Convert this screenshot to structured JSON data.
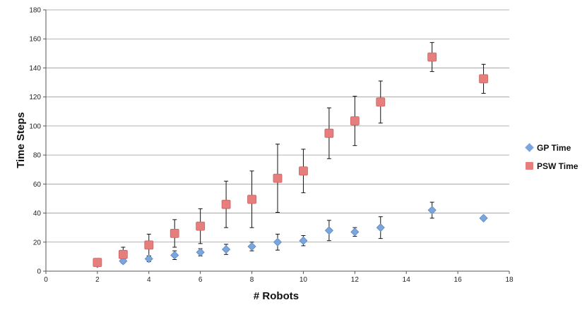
{
  "chart_data": {
    "type": "scatter",
    "xlabel": "# Robots",
    "ylabel": "Time Steps",
    "xlim": [
      0,
      18
    ],
    "ylim": [
      0,
      180
    ],
    "xticks": [
      0,
      2,
      4,
      6,
      8,
      10,
      12,
      14,
      16,
      18
    ],
    "yticks": [
      0,
      20,
      40,
      60,
      80,
      100,
      120,
      140,
      160,
      180
    ],
    "grid": "horizontal",
    "legend_position": "right",
    "series": [
      {
        "name": "GP Time",
        "marker": "diamond",
        "color": "#7aa6dc",
        "x": [
          2,
          3,
          4,
          5,
          6,
          7,
          8,
          9,
          10,
          11,
          12,
          13,
          15,
          17
        ],
        "y": [
          5,
          7,
          8.5,
          11,
          13,
          15,
          17,
          20,
          21,
          28,
          27,
          30,
          42,
          36.5
        ],
        "err_low": [
          1.5,
          1.5,
          2,
          3,
          2.5,
          3.5,
          3,
          5.5,
          3.5,
          7,
          3,
          7.5,
          5.5,
          0.5
        ],
        "err_high": [
          1.5,
          1.5,
          2,
          3,
          2.5,
          3.5,
          3,
          5.5,
          3.5,
          7,
          3,
          7.5,
          5.5,
          0.5
        ]
      },
      {
        "name": "PSW Time",
        "marker": "square",
        "color": "#e77e7e",
        "x": [
          2,
          3,
          4,
          5,
          6,
          7,
          8,
          9,
          10,
          11,
          12,
          13,
          15,
          17
        ],
        "y": [
          6,
          11.5,
          18,
          26,
          31,
          46,
          49.5,
          64,
          69,
          95,
          103.5,
          116.5,
          147.5,
          132.5
        ],
        "err_low": [
          2.5,
          5,
          7.5,
          9.5,
          12,
          16,
          19.5,
          23.5,
          15,
          17.5,
          17,
          14.5,
          10,
          10
        ],
        "err_high": [
          2.5,
          5,
          7.5,
          9.5,
          12,
          16,
          19.5,
          23.5,
          15,
          17.5,
          17,
          14.5,
          10,
          10
        ]
      }
    ]
  }
}
